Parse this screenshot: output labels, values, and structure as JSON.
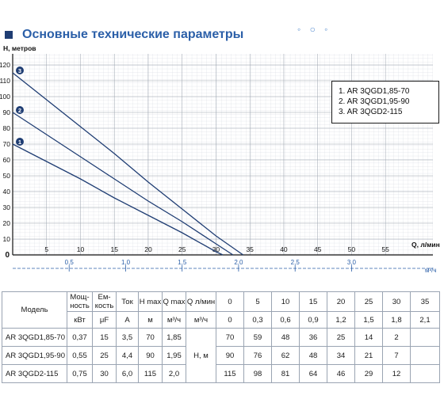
{
  "page": {
    "title": "Основные технические параметры",
    "decor_icon": "bubbles-decoration"
  },
  "chart_data": {
    "type": "line",
    "ylabel": "Н, метров",
    "xlabel": "Q, л/мин",
    "x2label": "м³/ч",
    "xlim": [
      0,
      62
    ],
    "ylim": [
      0,
      127
    ],
    "x_ticks": [
      5,
      10,
      15,
      20,
      25,
      30,
      35,
      40,
      45,
      50,
      55
    ],
    "x_ticks_extra": [
      "60"
    ],
    "y_ticks": [
      10,
      20,
      30,
      40,
      50,
      60,
      70,
      80,
      90,
      100,
      110,
      120
    ],
    "y_zero_label": "0",
    "x2_ticks": [
      {
        "q": 8.33,
        "label": "0,5"
      },
      {
        "q": 16.67,
        "label": "1,0"
      },
      {
        "q": 25,
        "label": "1,5"
      },
      {
        "q": 33.33,
        "label": "2,0"
      },
      {
        "q": 41.67,
        "label": "2,5"
      },
      {
        "q": 50,
        "label": "3,0"
      }
    ],
    "grid": true,
    "line_color": "#1f3d73",
    "series": [
      {
        "marker": "1",
        "name": "AR 3QGD1,85-70",
        "x": [
          0,
          5,
          10,
          15,
          20,
          25,
          30,
          31
        ],
        "y": [
          70,
          59,
          48,
          36,
          25,
          14,
          2,
          0
        ]
      },
      {
        "marker": "2",
        "name": "AR 3QGD1,95-90",
        "x": [
          0,
          5,
          10,
          15,
          20,
          25,
          30,
          32.5
        ],
        "y": [
          90,
          76,
          62,
          48,
          34,
          21,
          7,
          0
        ]
      },
      {
        "marker": "3",
        "name": "AR 3QGD2-115",
        "x": [
          0,
          5,
          10,
          15,
          20,
          25,
          30,
          34
        ],
        "y": [
          115,
          98,
          81,
          64,
          46,
          29,
          12,
          0
        ]
      }
    ]
  },
  "legend": {
    "items": [
      "1.  AR 3QGD1,85-70",
      "2.  AR 3QGD1,95-90",
      "3.  AR 3QGD2-115"
    ]
  },
  "table": {
    "h_model": "Модель",
    "h_power": "Мощ-ность",
    "h_capacitance": "Ем-кость",
    "h_current": "Ток",
    "h_hmax": "H max",
    "h_qmax": "Q max",
    "h_q": "Q л/мин",
    "q_lmin": [
      "0",
      "5",
      "10",
      "15",
      "20",
      "25",
      "30",
      "35"
    ],
    "u_power": "кВт",
    "u_capacitance": "μF",
    "u_current": "A",
    "u_hmax": "м",
    "u_qmax": "м³/ч",
    "u_q": "м³/ч",
    "q_m3h": [
      "0",
      "0,3",
      "0,6",
      "0,9",
      "1,2",
      "1,5",
      "1,8",
      "2,1"
    ],
    "hm_label": "Н, м",
    "rows": [
      {
        "model": "AR 3QGD1,85-70",
        "power": "0,37",
        "cap": "15",
        "current": "3,5",
        "hmax": "70",
        "qmax": "1,85",
        "h": [
          "70",
          "59",
          "48",
          "36",
          "25",
          "14",
          "2",
          ""
        ]
      },
      {
        "model": "AR 3QGD1,95-90",
        "power": "0,55",
        "cap": "25",
        "current": "4,4",
        "hmax": "90",
        "qmax": "1,95",
        "h": [
          "90",
          "76",
          "62",
          "48",
          "34",
          "21",
          "7",
          ""
        ]
      },
      {
        "model": "AR 3QGD2-115",
        "power": "0,75",
        "cap": "30",
        "current": "6,0",
        "hmax": "115",
        "qmax": "2,0",
        "h": [
          "115",
          "98",
          "81",
          "64",
          "46",
          "29",
          "12",
          ""
        ]
      }
    ]
  }
}
